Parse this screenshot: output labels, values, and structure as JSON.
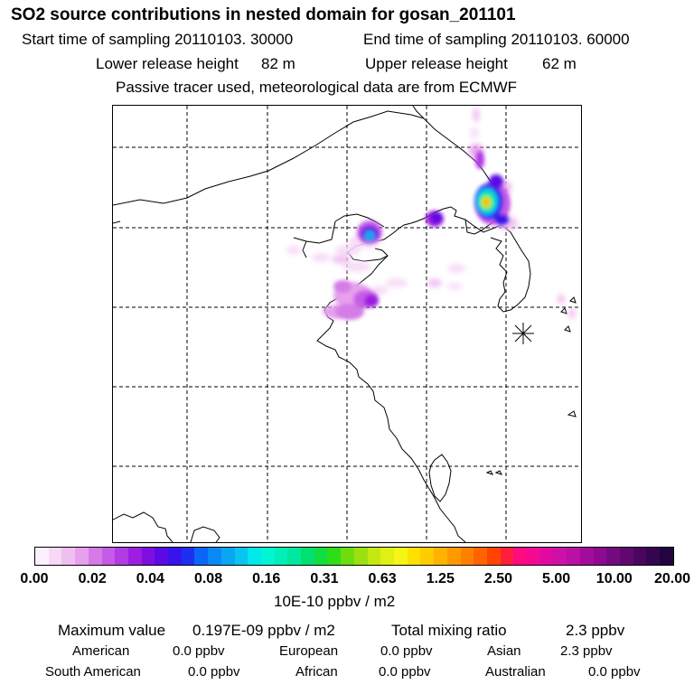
{
  "header": {
    "title": "SO2 source contributions in nested domain for gosan_201101",
    "start_label": "Start time of sampling 20110103. 30000",
    "end_label": "End time of sampling 20110103. 60000",
    "lower_label": "Lower release height",
    "lower_value": "82 m",
    "upper_label": "Upper release height",
    "upper_value": "62 m",
    "tracer_note": "Passive tracer used, meteorological data are from ECMWF"
  },
  "colorbar": {
    "ticks": [
      "0.00",
      "0.02",
      "0.04",
      "0.08",
      "0.16",
      "0.31",
      "0.63",
      "1.25",
      "2.50",
      "5.00",
      "10.00",
      "20.00"
    ],
    "unit": "10E-10 ppbv / m2",
    "colors": [
      "#fdf0fd",
      "#f7d9f7",
      "#f0bff1",
      "#e6a0ec",
      "#d57be7",
      "#c55be6",
      "#b23be4",
      "#9d1ee0",
      "#7f0fe0",
      "#5a0be3",
      "#3a12eb",
      "#1f2ff0",
      "#0a66f5",
      "#0b88f5",
      "#0aa6f3",
      "#0ac4f0",
      "#00e8ea",
      "#00f5d3",
      "#00eeb8",
      "#00e89d",
      "#00e070",
      "#10dd40",
      "#2edd18",
      "#6ddd10",
      "#9de010",
      "#c5e812",
      "#e0ef14",
      "#f5f518",
      "#ffe000",
      "#ffcc00",
      "#ffb300",
      "#ff9900",
      "#ff8000",
      "#ff6400",
      "#ff4400",
      "#ff1f3a",
      "#ff0a7f",
      "#f20a93",
      "#e00aa1",
      "#cc10a8",
      "#b910a5",
      "#a20c9c",
      "#8c0b8f",
      "#740a80",
      "#5f0870",
      "#4a065e",
      "#360550",
      "#22043f"
    ]
  },
  "stats": {
    "max_label": "Maximum value",
    "max_value": "0.197E-09 ppbv / m2",
    "total_label": "Total mixing ratio",
    "total_value": "2.3 ppbv",
    "regions": [
      {
        "name": "American",
        "value": "0.0 ppbv"
      },
      {
        "name": "European",
        "value": "0.0 ppbv"
      },
      {
        "name": "Asian",
        "value": "2.3 ppbv"
      },
      {
        "name": "South American",
        "value": "0.0 ppbv"
      },
      {
        "name": "African",
        "value": "0.0 ppbv"
      },
      {
        "name": "Australian",
        "value": "0.0 ppbv"
      }
    ]
  },
  "map": {
    "receptor_marker": "asterisk-icon"
  }
}
